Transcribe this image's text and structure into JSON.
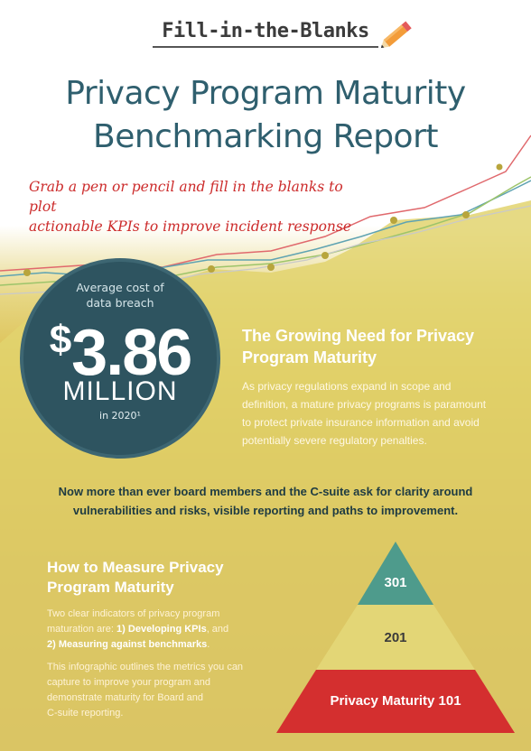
{
  "banner": {
    "text": "Fill-in-the-Blanks"
  },
  "title": {
    "line1": "Privacy Program Maturity",
    "line2": "Benchmarking Report"
  },
  "subtitle": {
    "line1": "Grab a pen or pencil and fill in the blanks to plot",
    "line2": "actionable KPIs to improve incident response"
  },
  "stat": {
    "label_line1": "Average cost of",
    "label_line2": "data breach",
    "dollar": "$",
    "value": "3.86",
    "unit": "MILLION",
    "year": "in 2020¹"
  },
  "need": {
    "heading_line1": "The Growing Need for Privacy",
    "heading_line2": "Program Maturity",
    "body_line1": "As privacy regulations expand in scope and",
    "body_line2": "definition, a mature privacy programs is paramount",
    "body_line3": "to protect private insurance information and avoid",
    "body_line4": "potentially severe regulatory penalties."
  },
  "board": {
    "line1": "Now more than ever board members and the C-suite ask for clarity around",
    "line2": "vulnerabilities and risks, visible reporting and paths to improvement."
  },
  "measure": {
    "heading_line1": "How to Measure Privacy",
    "heading_line2": "Program Maturity",
    "p1_line1": "Two clear indicators of privacy program",
    "p1_line2_prefix": "maturation are: ",
    "p1_kpi": "1) Developing KPIs",
    "p1_and": ", and",
    "p1_bench": "2) Measuring against benchmarks",
    "p1_end": ".",
    "p2_line1": "This infographic outlines the metrics you can",
    "p2_line2": "capture to improve your program and",
    "p2_line3": "demonstrate maturity for Board and",
    "p2_line4": "C-suite reporting."
  },
  "pyramid": {
    "tiers": [
      {
        "label": "301",
        "color": "#4e9b8c"
      },
      {
        "label": "201",
        "color": "#e3d676"
      },
      {
        "label": "Privacy Maturity 101",
        "color": "#d42f2f"
      }
    ]
  },
  "colors": {
    "title": "#2f5f6e",
    "subtitle": "#cc2b2b",
    "circle": "#2e5460",
    "line_red": "#e0696d",
    "line_teal": "#5fa3b2",
    "line_green": "#9dc46a",
    "dots": "#b8a53c"
  },
  "icons": {
    "pencil": "pencil-icon"
  }
}
